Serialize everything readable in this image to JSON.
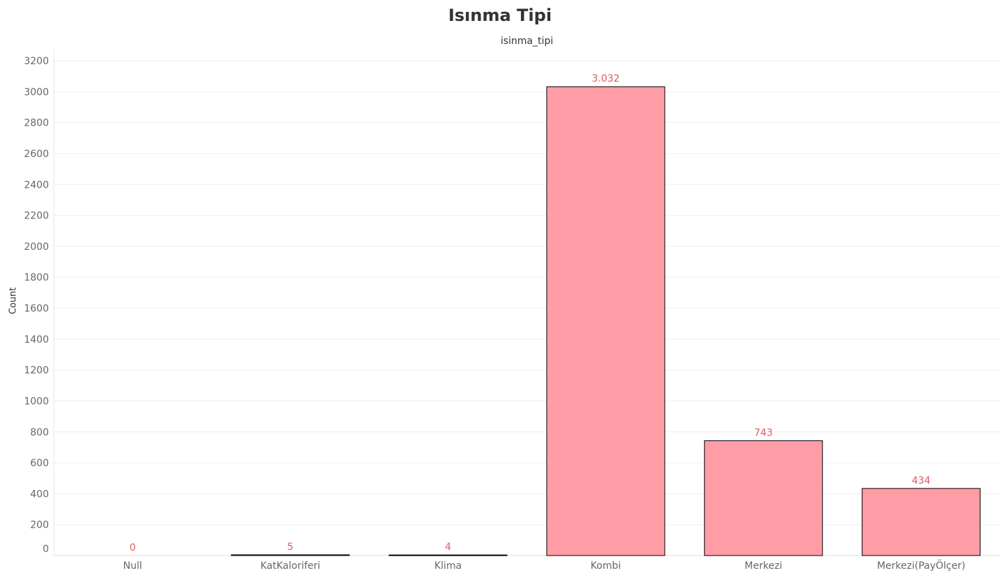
{
  "chart_data": {
    "type": "bar",
    "title": "Isınma Tipi",
    "column_header": "isinma_tipi",
    "xlabel": "",
    "ylabel": "Count",
    "categories": [
      "Null",
      "KatKaloriferi",
      "Klima",
      "Kombi",
      "Merkezi",
      "Merkezi(PayÖlçer)"
    ],
    "values": [
      0,
      5,
      4,
      3032,
      743,
      434
    ],
    "value_labels": [
      "0",
      "5",
      "4",
      "3.032",
      "743",
      "434"
    ],
    "ylim": [
      0,
      3200
    ],
    "yticks": [
      0,
      200,
      400,
      600,
      800,
      1000,
      1200,
      1400,
      1600,
      1800,
      2000,
      2200,
      2400,
      2600,
      2800,
      3000,
      3200
    ],
    "grid": true,
    "bar_color": "#ff9ca6",
    "bar_outline_color": "#000000",
    "value_label_color": "#e05a5f",
    "legend": "none"
  }
}
